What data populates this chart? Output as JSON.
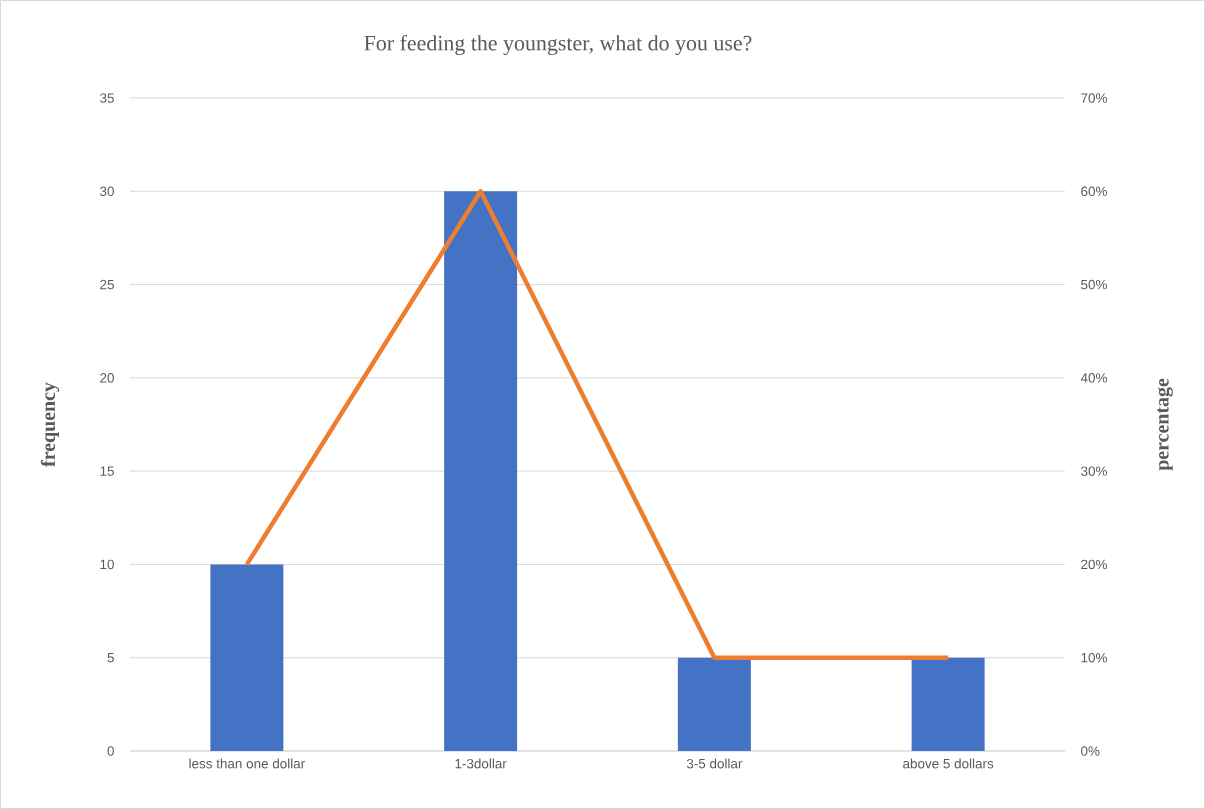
{
  "chart_data": {
    "type": "bar",
    "title": "For feeding the youngster, what do you use?",
    "ylabel": "frequency",
    "y2label": "percentage",
    "categories": [
      "less than one dollar",
      "1-3dollar",
      "3-5 dollar",
      "above 5 dollars"
    ],
    "series": [
      {
        "color": "#4472c4",
        "values": [
          10,
          30,
          5,
          5
        ]
      },
      {
        "type": "line",
        "axis": "y2",
        "color": "#ed7d31",
        "values": [
          20,
          60,
          10,
          10
        ]
      }
    ],
    "ylim": [
      0,
      35
    ],
    "yticks": [
      0,
      5,
      10,
      15,
      20,
      25,
      30,
      35
    ],
    "y2lim": [
      0,
      70
    ],
    "y2ticks": [
      {
        "value": 0,
        "label": "0%"
      },
      {
        "value": 10,
        "label": "10%"
      },
      {
        "value": 20,
        "label": "20%"
      },
      {
        "value": 30,
        "label": "30%"
      },
      {
        "value": 40,
        "label": "40%"
      },
      {
        "value": 50,
        "label": "50%"
      },
      {
        "value": 60,
        "label": "60%"
      },
      {
        "value": 70,
        "label": "70%"
      }
    ],
    "grid": "y"
  }
}
